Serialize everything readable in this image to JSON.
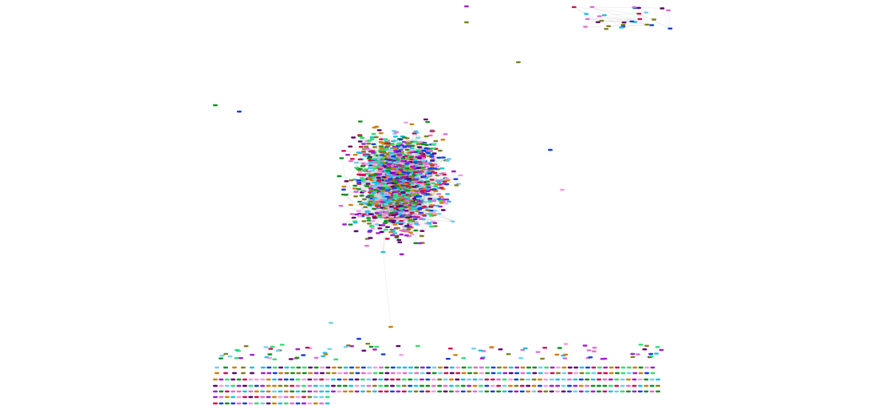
{
  "diagram": {
    "type": "network-graph",
    "background": "#ffffff",
    "edge_color": "#b8b8b8",
    "node_palette": [
      "#e070d0",
      "#20c0e0",
      "#1040e0",
      "#109020",
      "#d08010",
      "#a020d0",
      "#30e070",
      "#d01050",
      "#70d0f0",
      "#600070",
      "#f0a0e0",
      "#808020"
    ],
    "components": [
      {
        "name": "main-cluster"
      },
      {
        "name": "small-cluster-top-right"
      },
      {
        "name": "isolated-nodes-grid"
      }
    ]
  }
}
